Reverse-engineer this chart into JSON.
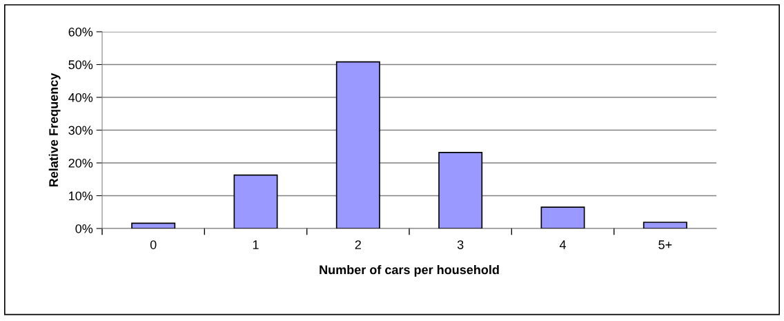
{
  "chart_data": {
    "type": "bar",
    "xlabel": "Number of cars per household",
    "ylabel": "Relative Frequency",
    "categories": [
      "0",
      "1",
      "2",
      "3",
      "4",
      "5+"
    ],
    "values": [
      1.6,
      16.3,
      50.8,
      23.2,
      6.5,
      1.9
    ],
    "color": "#9999ff",
    "ylim": [
      0,
      60
    ],
    "yticks": [
      {
        "value": 0,
        "label": "0%"
      },
      {
        "value": 10,
        "label": "10%"
      },
      {
        "value": 20,
        "label": "20%"
      },
      {
        "value": 30,
        "label": "30%"
      },
      {
        "value": 40,
        "label": "40%"
      },
      {
        "value": 50,
        "label": "50%"
      },
      {
        "value": 60,
        "label": "60%"
      }
    ],
    "grid": "y",
    "legend": false
  }
}
